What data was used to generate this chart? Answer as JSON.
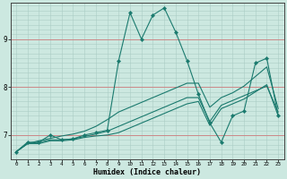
{
  "xlabel": "Humidex (Indice chaleur)",
  "bg_color": "#cce8e0",
  "grid_color": "#aaccc4",
  "line_color": "#1a7a6e",
  "hline_color": "#cc8888",
  "xlim": [
    -0.5,
    23.5
  ],
  "ylim": [
    6.5,
    9.75
  ],
  "xticks": [
    0,
    1,
    2,
    3,
    4,
    5,
    6,
    7,
    8,
    9,
    10,
    11,
    12,
    13,
    14,
    15,
    16,
    17,
    18,
    19,
    20,
    21,
    22,
    23
  ],
  "yticks": [
    7,
    8,
    9
  ],
  "hlines": [
    7.0,
    8.0,
    9.0
  ],
  "series": [
    {
      "x": [
        0,
        1,
        2,
        3,
        4,
        5,
        6,
        7,
        8,
        9,
        10,
        11,
        12,
        13,
        14,
        15,
        16,
        17,
        18,
        19,
        20,
        21,
        22,
        23
      ],
      "y": [
        6.65,
        6.85,
        6.85,
        7.0,
        6.9,
        6.92,
        7.0,
        7.05,
        7.1,
        8.55,
        9.55,
        9.0,
        9.5,
        9.65,
        9.15,
        8.55,
        7.85,
        7.25,
        6.85,
        7.4,
        7.5,
        8.5,
        8.6,
        7.4
      ],
      "has_markers": true
    },
    {
      "x": [
        0,
        1,
        2,
        3,
        4,
        5,
        6,
        7,
        8,
        9,
        10,
        11,
        12,
        13,
        14,
        15,
        16,
        17,
        18,
        19,
        20,
        21,
        22,
        23
      ],
      "y": [
        6.65,
        6.82,
        6.82,
        6.88,
        6.88,
        6.9,
        6.95,
        6.98,
        7.0,
        7.05,
        7.15,
        7.25,
        7.35,
        7.45,
        7.55,
        7.65,
        7.7,
        7.2,
        7.55,
        7.65,
        7.75,
        7.9,
        8.05,
        7.4
      ],
      "has_markers": false
    },
    {
      "x": [
        0,
        1,
        2,
        3,
        4,
        5,
        6,
        7,
        8,
        9,
        10,
        11,
        12,
        13,
        14,
        15,
        16,
        17,
        18,
        19,
        20,
        21,
        22,
        23
      ],
      "y": [
        6.65,
        6.82,
        6.85,
        6.9,
        6.9,
        6.92,
        6.97,
        7.02,
        7.08,
        7.18,
        7.28,
        7.38,
        7.48,
        7.58,
        7.68,
        7.78,
        7.78,
        7.28,
        7.62,
        7.72,
        7.82,
        7.92,
        8.02,
        7.48
      ],
      "has_markers": false
    },
    {
      "x": [
        0,
        1,
        2,
        3,
        4,
        5,
        6,
        7,
        8,
        9,
        10,
        11,
        12,
        13,
        14,
        15,
        16,
        17,
        18,
        19,
        20,
        21,
        22,
        23
      ],
      "y": [
        6.65,
        6.82,
        6.88,
        6.93,
        6.98,
        7.02,
        7.08,
        7.18,
        7.32,
        7.48,
        7.58,
        7.68,
        7.78,
        7.88,
        7.98,
        8.08,
        8.08,
        7.58,
        7.78,
        7.88,
        8.02,
        8.22,
        8.42,
        7.55
      ],
      "has_markers": false
    }
  ]
}
